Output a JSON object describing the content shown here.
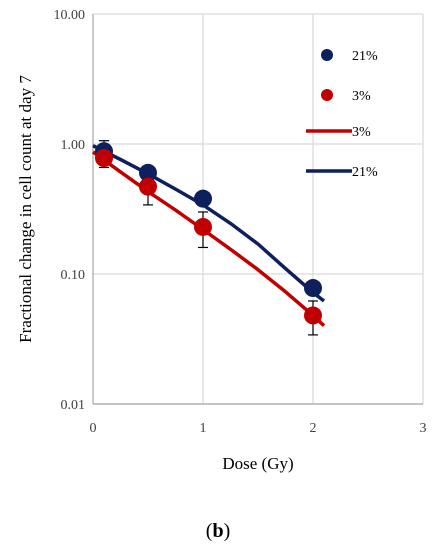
{
  "caption": {
    "open": "(",
    "letter": "b",
    "close": ")"
  },
  "chart_data": {
    "type": "scatter",
    "title": "",
    "xlabel": "Dose (Gy)",
    "ylabel": "Fractional change in cell count at day 7",
    "xlim": [
      0,
      3
    ],
    "ylim": [
      0.01,
      10
    ],
    "yscale": "log",
    "grid": true,
    "legend_position": "top-right",
    "x_ticks": [
      {
        "value": 0,
        "label": "0"
      },
      {
        "value": 1,
        "label": "1"
      },
      {
        "value": 2,
        "label": "2"
      },
      {
        "value": 3,
        "label": "3"
      }
    ],
    "y_ticks": [
      {
        "value": 0.01,
        "label": "0.01"
      },
      {
        "value": 0.1,
        "label": "0.10"
      },
      {
        "value": 1,
        "label": "1.00"
      },
      {
        "value": 10,
        "label": "10.00"
      }
    ],
    "series": [
      {
        "name": "21%",
        "kind": "points",
        "color": "#0d1f5c",
        "x": [
          0.1,
          0.5,
          1,
          2
        ],
        "y": [
          0.88,
          0.6,
          0.38,
          0.078
        ],
        "error": [
          0.18,
          0.06,
          0.04,
          0.008
        ]
      },
      {
        "name": "3%",
        "kind": "points",
        "color": "#c00000",
        "x": [
          0.1,
          0.5,
          1,
          2
        ],
        "y": [
          0.78,
          0.47,
          0.23,
          0.048
        ],
        "error": [
          0.12,
          0.13,
          0.07,
          0.014
        ]
      },
      {
        "name": "3%",
        "kind": "line",
        "color": "#c00000",
        "x": [
          0,
          0.25,
          0.5,
          0.75,
          1,
          1.25,
          1.5,
          1.75,
          2,
          2.1
        ],
        "y": [
          0.87,
          0.61,
          0.43,
          0.31,
          0.22,
          0.155,
          0.108,
          0.073,
          0.048,
          0.04
        ]
      },
      {
        "name": "21%",
        "kind": "line",
        "color": "#0d1f5c",
        "x": [
          0,
          0.25,
          0.5,
          0.75,
          1,
          1.25,
          1.5,
          1.75,
          2,
          2.1
        ],
        "y": [
          0.97,
          0.76,
          0.59,
          0.45,
          0.34,
          0.245,
          0.17,
          0.11,
          0.072,
          0.062
        ]
      }
    ]
  }
}
